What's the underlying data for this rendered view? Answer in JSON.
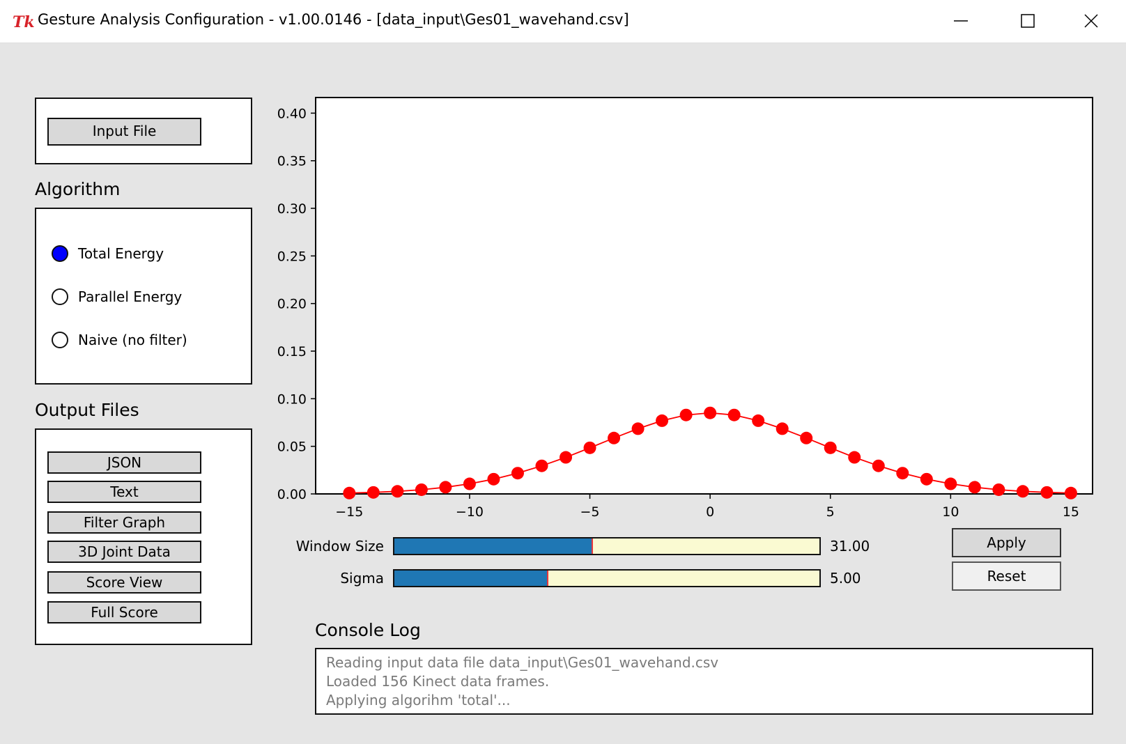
{
  "window": {
    "title": "Gesture Analysis Configuration - v1.00.0146 - [data_input\\Ges01_wavehand.csv]",
    "logo_text": "Tk",
    "minimize_icon": "minimize-icon",
    "maximize_icon": "maximize-icon",
    "close_icon": "close-icon"
  },
  "input_panel": {
    "input_file_label": "Input File"
  },
  "algorithm": {
    "heading": "Algorithm",
    "options": [
      {
        "label": "Total Energy",
        "selected": true
      },
      {
        "label": "Parallel Energy",
        "selected": false
      },
      {
        "label": "Naive (no filter)",
        "selected": false
      }
    ]
  },
  "output_files": {
    "heading": "Output Files",
    "buttons": [
      "JSON",
      "Text",
      "Filter Graph",
      "3D Joint Data",
      "Score View",
      "Full Score"
    ]
  },
  "sliders": {
    "window_size": {
      "label": "Window Size",
      "value": "31.00",
      "fraction": 0.467
    },
    "sigma": {
      "label": "Sigma",
      "value": "5.00",
      "fraction": 0.363
    }
  },
  "actions": {
    "apply_label": "Apply",
    "reset_label": "Reset"
  },
  "console": {
    "heading": "Console Log",
    "lines": [
      "Reading input data file data_input\\Ges01_wavehand.csv",
      "Loaded 156 Kinect data frames.",
      "Applying algorihm 'total'..."
    ]
  },
  "colors": {
    "series": "#ff0000",
    "slider_fill": "#1f77b4",
    "slider_track": "#fafad2",
    "radio_selected": "#0000ff"
  },
  "chart_data": {
    "type": "line",
    "title": "",
    "xlabel": "",
    "ylabel": "",
    "xlim": [
      -16.4,
      15.9
    ],
    "ylim": [
      0,
      0.42
    ],
    "xticks": [
      -15,
      -10,
      -5,
      0,
      5,
      10,
      15
    ],
    "xtick_labels": [
      "−15",
      "−10",
      "−5",
      "0",
      "5",
      "10",
      "15"
    ],
    "yticks": [
      0,
      0.05,
      0.1,
      0.15,
      0.2,
      0.25,
      0.3,
      0.35,
      0.4
    ],
    "ytick_labels": [
      "0.00",
      "0.05",
      "0.10",
      "0.15",
      "0.20",
      "0.25",
      "0.30",
      "0.35",
      "0.40"
    ],
    "grid": false,
    "series": [
      {
        "marker": "circle",
        "color": "#ff0000",
        "x": [
          -15,
          -14,
          -13,
          -12,
          -11,
          -10,
          -9,
          -8,
          -7,
          -6,
          -5,
          -4,
          -3,
          -2,
          -1,
          0,
          1,
          2,
          3,
          4,
          5,
          6,
          7,
          8,
          9,
          10,
          11,
          12,
          13,
          14,
          15
        ],
        "values": [
          0.0009,
          0.0016,
          0.0027,
          0.0044,
          0.007,
          0.0106,
          0.0155,
          0.0218,
          0.0295,
          0.0384,
          0.0484,
          0.0587,
          0.0685,
          0.0769,
          0.0829,
          0.0851,
          0.0829,
          0.0769,
          0.0685,
          0.0587,
          0.0484,
          0.0384,
          0.0295,
          0.0218,
          0.0155,
          0.0106,
          0.007,
          0.0044,
          0.0027,
          0.0016,
          0.0009
        ]
      }
    ]
  }
}
